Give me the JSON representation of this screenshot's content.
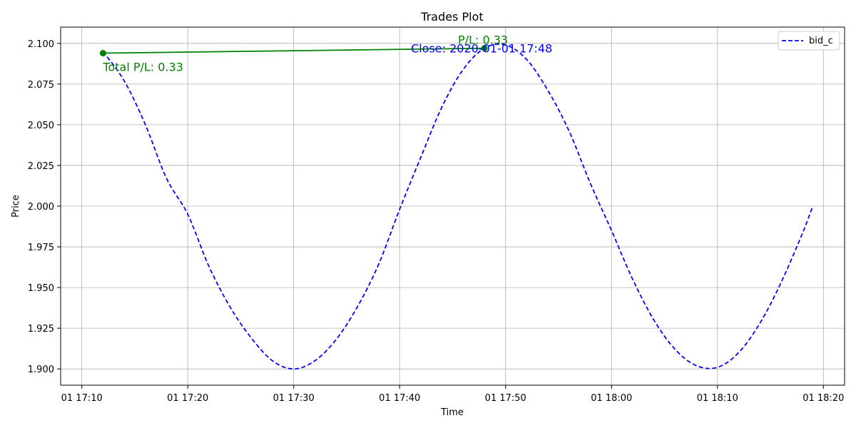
{
  "chart_data": {
    "type": "line",
    "title": "Trades Plot",
    "xlabel": "Time",
    "ylabel": "Price",
    "xlim": [
      "2020-01-01 17:08",
      "2020-01-01 18:22"
    ],
    "ylim": [
      1.89,
      2.11
    ],
    "x_tick_labels": [
      "01 17:10",
      "01 17:20",
      "01 17:30",
      "01 17:40",
      "01 17:50",
      "01 18:00",
      "01 18:10",
      "01 18:20"
    ],
    "x_ticks": [
      "2020-01-01 17:10",
      "2020-01-01 17:20",
      "2020-01-01 17:30",
      "2020-01-01 17:40",
      "2020-01-01 17:50",
      "2020-01-01 18:00",
      "2020-01-01 18:10",
      "2020-01-01 18:20"
    ],
    "y_ticks": [
      1.9,
      1.925,
      1.95,
      1.975,
      2.0,
      2.025,
      2.05,
      2.075,
      2.1
    ],
    "y_tick_labels": [
      "1.900",
      "1.925",
      "1.950",
      "1.975",
      "2.000",
      "2.025",
      "2.050",
      "2.075",
      "2.100"
    ],
    "grid": true,
    "legend": {
      "position": "top-right",
      "entries": [
        "bid_c"
      ]
    },
    "series": [
      {
        "name": "bid_c",
        "style": "dashed",
        "color": "#0000ff",
        "x": [
          "2020-01-01 17:12",
          "2020-01-01 17:14",
          "2020-01-01 17:16",
          "2020-01-01 17:18",
          "2020-01-01 17:20",
          "2020-01-01 17:22",
          "2020-01-01 17:24",
          "2020-01-01 17:26",
          "2020-01-01 17:28",
          "2020-01-01 17:30",
          "2020-01-01 17:32",
          "2020-01-01 17:34",
          "2020-01-01 17:36",
          "2020-01-01 17:38",
          "2020-01-01 17:40",
          "2020-01-01 17:42",
          "2020-01-01 17:44",
          "2020-01-01 17:46",
          "2020-01-01 17:48",
          "2020-01-01 17:50",
          "2020-01-01 17:52",
          "2020-01-01 17:54",
          "2020-01-01 17:56",
          "2020-01-01 17:58",
          "2020-01-01 18:00",
          "2020-01-01 18:02",
          "2020-01-01 18:04",
          "2020-01-01 18:06",
          "2020-01-01 18:08",
          "2020-01-01 18:10",
          "2020-01-01 18:12",
          "2020-01-01 18:14",
          "2020-01-01 18:16",
          "2020-01-01 18:18",
          "2020-01-01 18:19"
        ],
        "y": [
          2.095,
          2.077,
          2.05,
          2.017,
          1.995,
          1.963,
          1.938,
          1.919,
          1.905,
          1.9,
          1.905,
          1.918,
          1.938,
          1.964,
          1.998,
          2.03,
          2.061,
          2.084,
          2.097,
          2.099,
          2.09,
          2.071,
          2.046,
          2.014,
          1.985,
          1.955,
          1.93,
          1.912,
          1.902,
          1.901,
          1.91,
          1.928,
          1.953,
          1.983,
          2.0
        ]
      },
      {
        "name": "",
        "style": "solid",
        "color": "#008000",
        "x": [
          "2020-01-01 17:12",
          "2020-01-01 17:48"
        ],
        "y": [
          2.094,
          2.097
        ]
      }
    ],
    "markers": [
      {
        "x": "2020-01-01 17:12",
        "y": 2.094,
        "color": "#008000"
      },
      {
        "x": "2020-01-01 17:48",
        "y": 2.097,
        "color": "#008000"
      }
    ],
    "annotations": [
      {
        "text": "Total P/L: 0.33",
        "x": "2020-01-01 17:12",
        "y": 2.094,
        "color": "#008000"
      },
      {
        "text": "P/L: 0.33",
        "x": "2020-01-01 17:48",
        "y": 2.097,
        "color": "#008000"
      },
      {
        "text": "Close: 2020-01-01 17:48",
        "x": "2020-01-01 17:48",
        "y": 2.097,
        "color": "#0000ff"
      }
    ]
  }
}
